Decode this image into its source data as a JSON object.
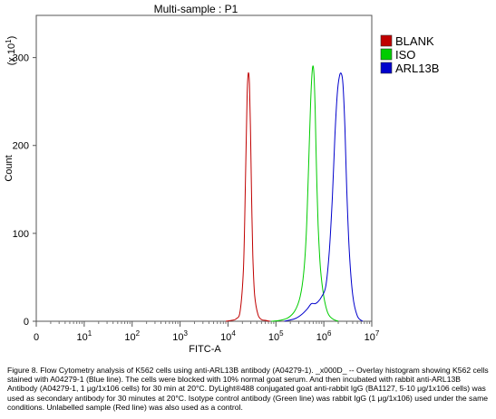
{
  "chart_data": {
    "type": "line",
    "title": "Multi-sample : P1",
    "xlabel": "FITC-A",
    "ylabel": "Count",
    "y_multiplier_label": "(x 10",
    "y_multiplier_exp": "1",
    "y_multiplier_close": ")",
    "x_scale": "log",
    "xlim": [
      1,
      10000000
    ],
    "ylim": [
      0,
      348
    ],
    "x_ticks": [
      {
        "base": "0",
        "exp": ""
      },
      {
        "base": "10",
        "exp": "1"
      },
      {
        "base": "10",
        "exp": "2"
      },
      {
        "base": "10",
        "exp": "3"
      },
      {
        "base": "10",
        "exp": "4"
      },
      {
        "base": "10",
        "exp": "5"
      },
      {
        "base": "10",
        "exp": "6"
      },
      {
        "base": "10",
        "exp": "7"
      }
    ],
    "y_ticks": [
      "0",
      "100",
      "200",
      "300"
    ],
    "y_tick_values": [
      0,
      100,
      200,
      300
    ],
    "legend_position": "right",
    "series": [
      {
        "name": "BLANK",
        "color": "#c00000",
        "x": [
          9000,
          12000,
          15000,
          18000,
          21000,
          23000,
          25000,
          26500,
          28000,
          29500,
          31000,
          33000,
          36000,
          42000,
          50000,
          60000,
          75000
        ],
        "y": [
          0,
          1,
          3,
          12,
          60,
          150,
          255,
          282,
          270,
          215,
          145,
          75,
          30,
          8,
          2,
          1,
          0
        ]
      },
      {
        "name": "ISO",
        "color": "#00cc00",
        "x": [
          80000,
          120000,
          180000,
          250000,
          320000,
          380000,
          430000,
          480000,
          530000,
          580000,
          620000,
          660000,
          700000,
          760000,
          850000,
          1000000,
          1200000,
          1500000,
          2000000
        ],
        "y": [
          0,
          1,
          4,
          12,
          28,
          55,
          100,
          175,
          250,
          288,
          282,
          240,
          175,
          110,
          60,
          28,
          10,
          3,
          0
        ]
      },
      {
        "name": "ARL13B",
        "color": "#0000cc",
        "x": [
          150000,
          250000,
          350000,
          450000,
          550000,
          650000,
          750000,
          900000,
          1100000,
          1300000,
          1500000,
          1700000,
          1900000,
          2100000,
          2300000,
          2500000,
          2750000,
          3000000,
          3400000,
          4000000,
          5000000,
          6500000
        ],
        "y": [
          0,
          3,
          8,
          14,
          20,
          20,
          22,
          28,
          40,
          80,
          140,
          210,
          258,
          278,
          282,
          270,
          220,
          150,
          80,
          30,
          6,
          0
        ]
      }
    ]
  },
  "caption": "Figure 8. Flow Cytometry analysis of K562 cells using anti-ARL13B antibody (A04279-1). _x000D_ -- Overlay histogram showing K562 cells stained with A04279-1 (Blue line). The cells were blocked with 10% normal goat serum. And then incubated with rabbit anti-ARL13B Antibody (A04279-1, 1 μg/1x106 cells) for 30 min at 20°C. DyLight®488 conjugated goat anti-rabbit IgG (BA1127, 5-10 μg/1x106 cells) was used as secondary antibody for 30 minutes at 20°C. Isotype control antibody (Green line) was rabbit IgG (1 μg/1x106) used under the same conditions. Unlabelled sample (Red line) was also used as a control."
}
